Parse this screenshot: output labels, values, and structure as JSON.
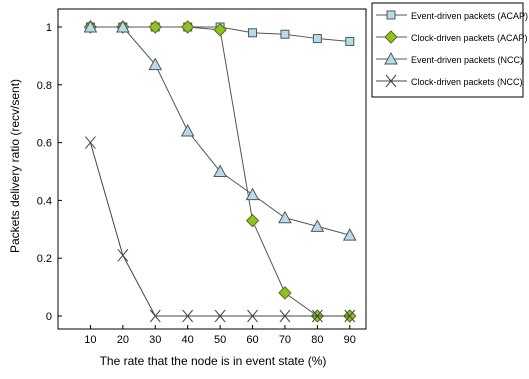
{
  "chart_data": {
    "type": "line",
    "xlabel": "The rate that the node is in event state (%)",
    "ylabel": "Packets delivery ratio (recv/sent)",
    "x": [
      10,
      20,
      30,
      40,
      50,
      60,
      70,
      80,
      90
    ],
    "x_tick_labels": [
      "10",
      "20",
      "30",
      "40",
      "50",
      "60",
      "70",
      "80",
      "90"
    ],
    "xlim": [
      0,
      95
    ],
    "ylim": [
      0,
      1.05
    ],
    "y_ticks": [
      0,
      0.2,
      0.4,
      0.6,
      0.8,
      1
    ],
    "y_tick_labels": [
      "0",
      "0.2",
      "0.4",
      "0.6",
      "0.8",
      "1"
    ],
    "grid": false,
    "legend_position": "top-right, outside plot",
    "series": [
      {
        "name": "Event-driven packets (ACAP)",
        "marker": "square",
        "line_color": "#555555",
        "marker_fill": "#b4dcea",
        "x": [
          10,
          20,
          30,
          40,
          50,
          60,
          70,
          80,
          90
        ],
        "values": [
          1.0,
          1.0,
          1.0,
          1.0,
          1.0,
          0.98,
          0.975,
          0.96,
          0.95
        ]
      },
      {
        "name": "Clock-driven packets (ACAP)",
        "marker": "diamond",
        "line_color": "#555555",
        "marker_fill": "#8fc41a",
        "x": [
          10,
          20,
          30,
          40,
          50,
          60,
          70,
          80,
          90
        ],
        "values": [
          1.0,
          1.0,
          1.0,
          1.0,
          0.99,
          0.33,
          0.08,
          0.0,
          0.0
        ]
      },
      {
        "name": "Event-driven packets (NCC)",
        "marker": "triangle",
        "line_color": "#555555",
        "marker_fill": "#b4dcea",
        "x": [
          10,
          20,
          30,
          40,
          50,
          60,
          70,
          80,
          90
        ],
        "values": [
          1.0,
          1.0,
          0.87,
          0.64,
          0.5,
          0.42,
          0.34,
          0.31,
          0.28
        ]
      },
      {
        "name": "Clock-driven packets (NCC)",
        "marker": "x",
        "line_color": "#444444",
        "marker_fill": "none",
        "x": [
          10,
          20,
          30,
          40,
          50,
          60,
          70,
          80,
          90
        ],
        "values": [
          0.6,
          0.21,
          0.0,
          0.0,
          0.0,
          0.0,
          0.0,
          0.0,
          0.0
        ]
      }
    ]
  }
}
